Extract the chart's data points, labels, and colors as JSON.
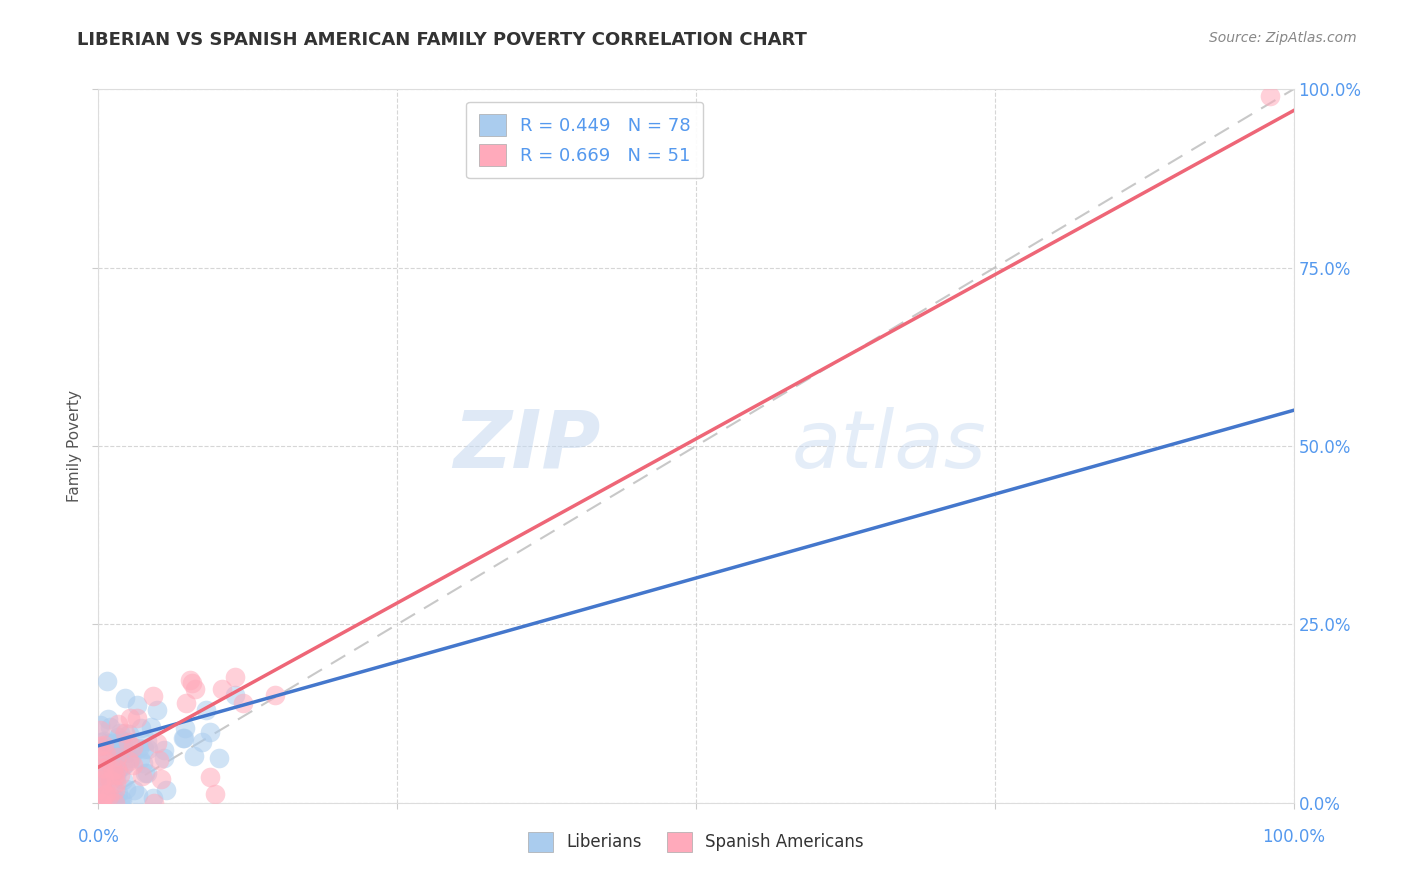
{
  "title": "LIBERIAN VS SPANISH AMERICAN FAMILY POVERTY CORRELATION CHART",
  "source": "Source: ZipAtlas.com",
  "ylabel": "Family Poverty",
  "ytick_values": [
    0,
    25,
    50,
    75,
    100
  ],
  "ytick_labels_right": [
    "0.0%",
    "25.0%",
    "50.0%",
    "75.0%",
    "100.0%"
  ],
  "xlim": [
    0,
    100
  ],
  "ylim": [
    0,
    100
  ],
  "liberian_color": "#aaccee",
  "spanish_color": "#ffaabb",
  "liberian_R": 0.449,
  "liberian_N": 78,
  "spanish_R": 0.669,
  "spanish_N": 51,
  "diagonal_color": "#bbbbbb",
  "liberian_line_color": "#4477cc",
  "spanish_line_color": "#ee6677",
  "legend_label_1": "R = 0.449   N = 78",
  "legend_label_2": "R = 0.669   N = 51",
  "watermark_zip": "ZIP",
  "watermark_atlas": "atlas",
  "background_color": "#ffffff",
  "grid_color": "#cccccc",
  "tick_color": "#5599ee",
  "title_color": "#333333",
  "source_color": "#888888",
  "ylabel_color": "#555555"
}
